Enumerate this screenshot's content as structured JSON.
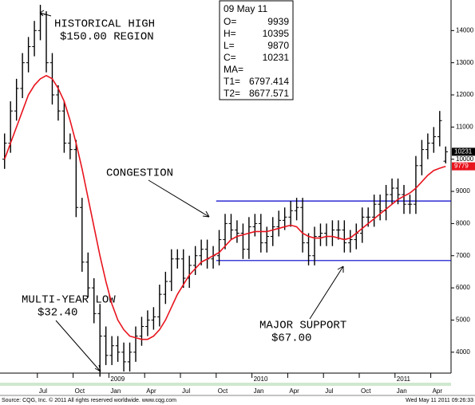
{
  "chart_data": {
    "type": "ohlc",
    "categories": [
      null,
      null,
      null,
      null,
      null,
      null,
      "Jul",
      null,
      null,
      null,
      null,
      null,
      "Oct",
      null,
      null,
      null,
      null,
      null,
      "Jan",
      null,
      null,
      null,
      null,
      null,
      "Apr",
      null,
      null,
      null,
      null,
      null,
      "Jul",
      null,
      null,
      null,
      null,
      null,
      "Oct",
      null,
      null,
      null,
      null,
      null,
      "Jan",
      null,
      null,
      null,
      null,
      null,
      "Apr",
      null,
      null,
      null,
      null,
      null,
      "Jul",
      null,
      null,
      null,
      null,
      null,
      "Oct",
      null,
      null,
      null,
      null,
      null,
      "Jan",
      null,
      null,
      null,
      null,
      null,
      "Apr",
      null,
      null
    ],
    "years": [
      null,
      null,
      null,
      null,
      null,
      null,
      null,
      null,
      null,
      null,
      null,
      null,
      null,
      null,
      null,
      null,
      null,
      null,
      "2009",
      null,
      null,
      null,
      null,
      null,
      null,
      null,
      null,
      null,
      null,
      null,
      null,
      null,
      null,
      null,
      null,
      null,
      null,
      null,
      null,
      null,
      null,
      null,
      "2010",
      null,
      null,
      null,
      null,
      null,
      null,
      null,
      null,
      null,
      null,
      null,
      null,
      null,
      null,
      null,
      null,
      null,
      null,
      null,
      null,
      null,
      null,
      null,
      "2011",
      null,
      null,
      null,
      null,
      null,
      null,
      null,
      null
    ],
    "ohlc": {
      "color": "#000000",
      "open": [
        10000,
        10500,
        11500,
        12200,
        13000,
        13500,
        14000,
        14500,
        13000,
        12000,
        11500,
        10500,
        10300,
        8500,
        6800,
        6000,
        5200,
        4500,
        3900,
        4200,
        4000,
        3700,
        4000,
        4500,
        4800,
        5000,
        5100,
        5800,
        6200,
        6900,
        6900,
        6300,
        6700,
        7000,
        7200,
        6900,
        7000,
        7500,
        8000,
        7800,
        7700,
        7200,
        7900,
        8000,
        7400,
        7600,
        7900,
        8100,
        8200,
        8400,
        8500,
        7400,
        7000,
        7600,
        7700,
        7600,
        7800,
        7800,
        7400,
        7500,
        7700,
        8200,
        8200,
        8600,
        8400,
        8900,
        9100,
        8900,
        8600,
        8600,
        9800,
        10300,
        10500,
        10700,
        9939
      ],
      "high": [
        10800,
        11800,
        12500,
        13300,
        13800,
        14300,
        14800,
        14600,
        13300,
        12300,
        11800,
        10800,
        10600,
        8800,
        7100,
        6300,
        5500,
        4800,
        4500,
        4500,
        4300,
        4300,
        4800,
        5100,
        5300,
        5400,
        6100,
        6500,
        7200,
        7200,
        7200,
        7000,
        7300,
        7500,
        7500,
        7300,
        7800,
        8300,
        8300,
        8100,
        8000,
        8200,
        8300,
        8300,
        7900,
        8200,
        8400,
        8500,
        8700,
        8800,
        8800,
        7700,
        7900,
        8000,
        8000,
        8100,
        8100,
        8100,
        7800,
        8000,
        8500,
        8500,
        8900,
        8900,
        9200,
        9400,
        9400,
        9200,
        8900,
        10100,
        10600,
        10800,
        11000,
        11500,
        10395
      ],
      "low": [
        9700,
        10200,
        11200,
        11900,
        12700,
        13200,
        13700,
        12700,
        11700,
        11200,
        10200,
        10000,
        8200,
        6500,
        5700,
        4900,
        3240,
        3600,
        3600,
        3700,
        3400,
        3400,
        3700,
        4200,
        4500,
        4700,
        4800,
        5500,
        5900,
        6600,
        6000,
        6000,
        6400,
        6700,
        6600,
        6600,
        6700,
        7200,
        7500,
        7400,
        6900,
        6900,
        7600,
        7100,
        7100,
        7300,
        7600,
        7800,
        7900,
        8100,
        7100,
        6700,
        6700,
        7300,
        7300,
        7300,
        7500,
        7100,
        7100,
        7200,
        7400,
        7900,
        7900,
        8100,
        8100,
        8600,
        8600,
        8300,
        8300,
        8300,
        9500,
        10000,
        10200,
        10400,
        9870
      ],
      "close": [
        10500,
        11500,
        12200,
        13000,
        13500,
        14000,
        14500,
        13000,
        12000,
        11500,
        10500,
        10300,
        8500,
        6800,
        6000,
        5200,
        4500,
        3900,
        4200,
        4000,
        3700,
        4000,
        4500,
        4800,
        5000,
        5100,
        5800,
        6200,
        6900,
        6900,
        6300,
        6700,
        7000,
        7200,
        6900,
        7000,
        7500,
        8000,
        7800,
        7700,
        7200,
        7900,
        8000,
        7400,
        7600,
        7900,
        8100,
        8200,
        8400,
        8500,
        7400,
        7000,
        7600,
        7700,
        7600,
        7800,
        7800,
        7400,
        7500,
        7700,
        8200,
        8200,
        8600,
        8400,
        8900,
        9100,
        8900,
        8600,
        8600,
        9800,
        10300,
        10500,
        10700,
        11200,
        10231
      ]
    },
    "ma": {
      "color": "#e8141e",
      "values": [
        10000,
        10500,
        11000,
        11500,
        12000,
        12300,
        12500,
        12600,
        12500,
        12200,
        11800,
        11200,
        10500,
        9700,
        8800,
        7900,
        7000,
        6200,
        5500,
        5000,
        4700,
        4500,
        4450,
        4400,
        4400,
        4500,
        4700,
        5000,
        5400,
        5800,
        6100,
        6400,
        6600,
        6800,
        6900,
        7000,
        7100,
        7300,
        7500,
        7600,
        7650,
        7700,
        7750,
        7750,
        7750,
        7800,
        7850,
        7900,
        7950,
        7900,
        7700,
        7600,
        7550,
        7550,
        7600,
        7600,
        7550,
        7500,
        7550,
        7700,
        7850,
        8000,
        8150,
        8300,
        8450,
        8600,
        8750,
        8850,
        8950,
        9100,
        9300,
        9500,
        9650,
        9720,
        9779
      ]
    },
    "levels": [
      {
        "value": 8700,
        "from": 36,
        "color": "#0000cc"
      },
      {
        "value": 6850,
        "from": 36,
        "color": "#0000cc"
      }
    ],
    "ylim": [
      3350,
      14950
    ],
    "yticks": [
      4000,
      5000,
      6000,
      7000,
      8000,
      9000,
      10000,
      11000,
      12000,
      13000,
      14000
    ],
    "grid": false,
    "annotations": {
      "high": [
        "HISTORICAL HIGH",
        "$150.00 REGION"
      ],
      "congestion": "CONGESTION",
      "low": [
        "MULTI-YEAR LOW",
        "$32.40"
      ],
      "support": [
        "MAJOR SUPPORT",
        "$67.00"
      ]
    },
    "info": {
      "date": "09 May 11",
      "labels": [
        "O=",
        "H=",
        "L=",
        "C=",
        "MA=",
        "T1=",
        "T2="
      ],
      "T1": 6797.414,
      "T2": 8677.571
    },
    "source": "Source: CQG, Inc. © 2011 All rights reserved worldwide. www.cqg.com",
    "timestamp": "Wed May 11 2011 09:26:33"
  }
}
